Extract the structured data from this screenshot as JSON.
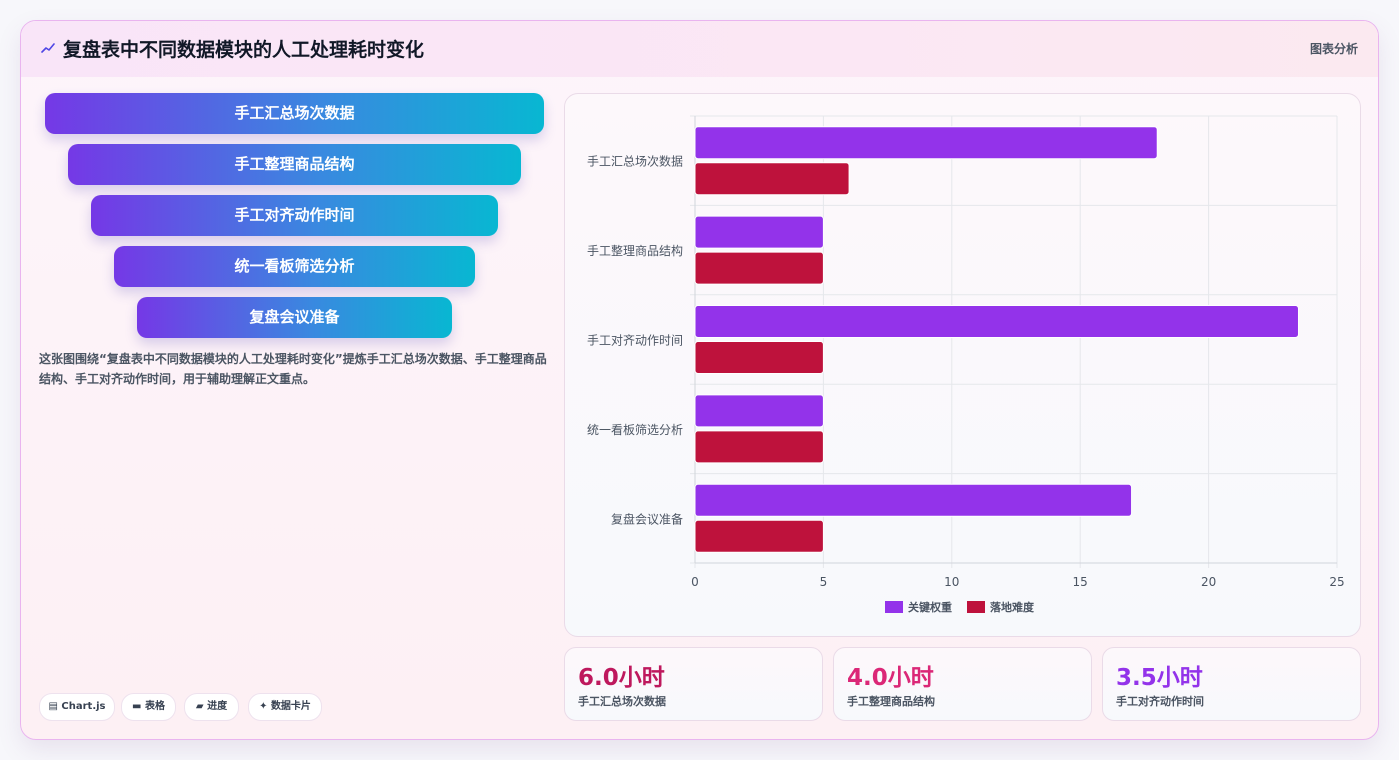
{
  "header": {
    "title": "复盘表中不同数据模块的人工处理耗时变化",
    "tag": "图表分析",
    "icon": "line-trend-icon"
  },
  "funnel": {
    "steps": [
      "手工汇总场次数据",
      "手工整理商品结构",
      "手工对齐动作时间",
      "统一看板筛选分析",
      "复盘会议准备"
    ]
  },
  "description": "这张图围绕“复盘表中不同数据模块的人工处理耗时变化”提炼手工汇总场次数据、手工整理商品结构、手工对齐动作时间，用于辅助理解正文重点。",
  "chips": [
    {
      "icon": "grid-icon",
      "glyph": "▤",
      "label": "Chart.js"
    },
    {
      "icon": "table-icon",
      "glyph": "▬",
      "label": "表格"
    },
    {
      "icon": "progress-icon",
      "glyph": "▰",
      "label": "进度"
    },
    {
      "icon": "sparkle-icon",
      "glyph": "✦",
      "label": "数据卡片"
    }
  ],
  "chart_data": {
    "type": "bar",
    "orientation": "horizontal",
    "categories": [
      "手工汇总场次数据",
      "手工整理商品结构",
      "手工对齐动作时间",
      "统一看板筛选分析",
      "复盘会议准备"
    ],
    "series": [
      {
        "name": "关键权重",
        "color": "#9333ea",
        "values": [
          18,
          5,
          23.5,
          5,
          17
        ]
      },
      {
        "name": "落地难度",
        "color": "#be123c",
        "values": [
          6,
          5,
          5,
          5,
          5
        ]
      }
    ],
    "xlim": [
      0,
      25
    ],
    "xticks": [
      0,
      5,
      10,
      15,
      20,
      25
    ],
    "grid": true,
    "legend": "bottom"
  },
  "kpis": [
    {
      "value": "6.0小时",
      "label": "手工汇总场次数据",
      "color": "#be185d"
    },
    {
      "value": "4.0小时",
      "label": "手工整理商品结构",
      "color": "#db2777"
    },
    {
      "value": "3.5小时",
      "label": "手工对齐动作时间",
      "color": "#9333ea"
    }
  ]
}
